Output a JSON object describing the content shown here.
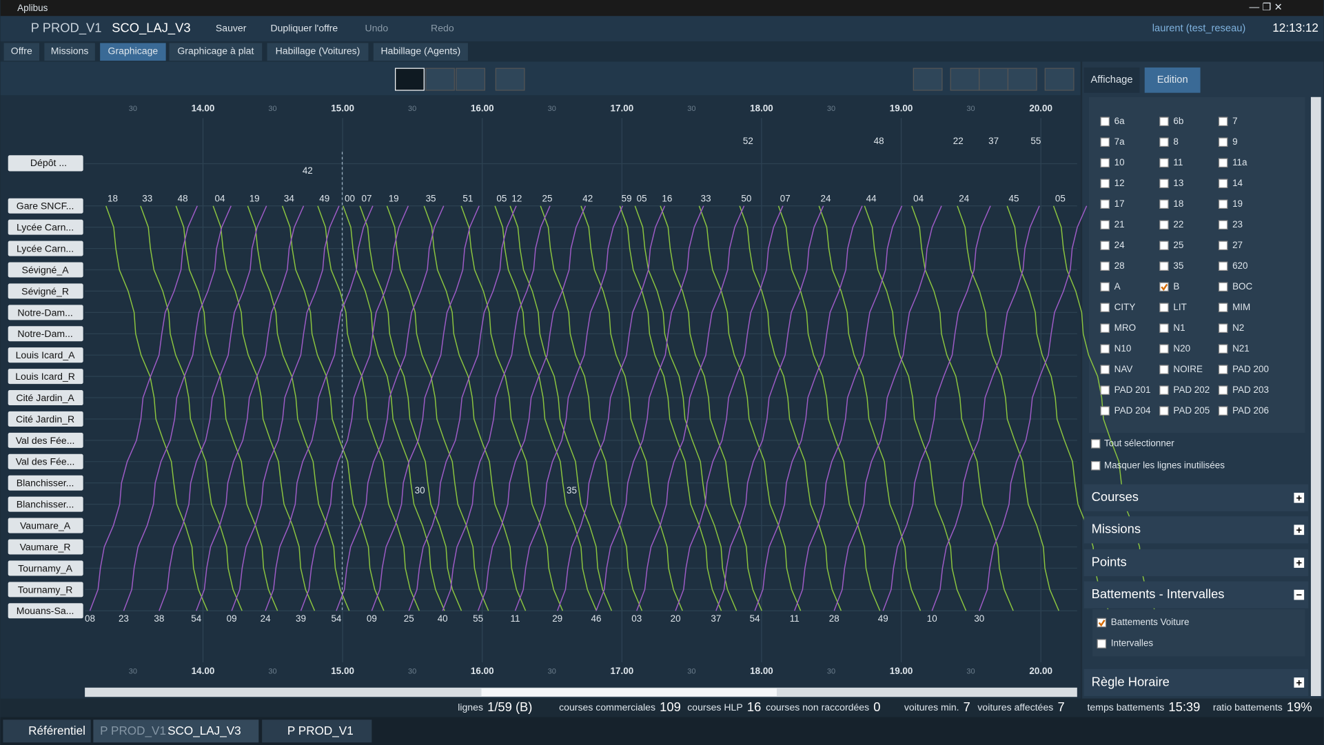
{
  "window_title": "Aplibus",
  "toolbar": {
    "project": "P PROD_V1",
    "offer": "SCO_LAJ_V3",
    "menus": [
      "Sauver",
      "Dupliquer l'offre",
      "Undo",
      "Redo"
    ],
    "user": "laurent (test_reseau)",
    "clock": "12:13:12"
  },
  "tabs": [
    "Offre",
    "Missions",
    "Graphicage",
    "Graphicage à plat",
    "Habillage (Voitures)",
    "Habillage (Agents)"
  ],
  "side_tabs": [
    "Affichage",
    "Edition"
  ],
  "graph": {
    "hours": [
      "14.00",
      "15.00",
      "16.00",
      "17.00",
      "18.00",
      "19.00",
      "20.00"
    ],
    "half_hour": "30",
    "depot": "Dépôt ...",
    "stops": [
      "Gare SNCF...",
      "Lycée Carn...",
      "Lycée Carn...",
      "Sévigné_A",
      "Sévigné_R",
      "Notre-Dam...",
      "Notre-Dam...",
      "Louis Icard_A",
      "Louis Icard_R",
      "Cité Jardin_A",
      "Cité Jardin_R",
      "Val des Fée...",
      "Val des Fée...",
      "Blanchisser...",
      "Blanchisser...",
      "Vaumare_A",
      "Vaumare_R",
      "Tournamy_A",
      "Tournamy_R",
      "Mouans-Sa..."
    ],
    "top_labels": [
      "18",
      "33",
      "48",
      "04",
      "19",
      "34",
      "49",
      "00",
      "07",
      "19",
      "35",
      "51",
      "05",
      "12",
      "25",
      "42",
      "59",
      "05",
      "16",
      "33",
      "50",
      "07",
      "24",
      "44",
      "04",
      "24",
      "45",
      "05"
    ],
    "bottom_labels": [
      "08",
      "23",
      "38",
      "54",
      "09",
      "24",
      "39",
      "54",
      "09",
      "25",
      "40",
      "55",
      "11",
      "29",
      "46",
      "03",
      "20",
      "37",
      "54",
      "11",
      "28",
      "49",
      "10",
      "30"
    ],
    "annotations": [
      "42",
      "52",
      "48",
      "22",
      "37",
      "55",
      "30",
      "35"
    ]
  },
  "line_filter": [
    {
      "label": "6a",
      "checked": false
    },
    {
      "label": "6b",
      "checked": false
    },
    {
      "label": "7",
      "checked": false
    },
    {
      "label": "7a",
      "checked": false
    },
    {
      "label": "8",
      "checked": false
    },
    {
      "label": "9",
      "checked": false
    },
    {
      "label": "10",
      "checked": false
    },
    {
      "label": "11",
      "checked": false
    },
    {
      "label": "11a",
      "checked": false
    },
    {
      "label": "12",
      "checked": false
    },
    {
      "label": "13",
      "checked": false
    },
    {
      "label": "14",
      "checked": false
    },
    {
      "label": "17",
      "checked": false
    },
    {
      "label": "18",
      "checked": false
    },
    {
      "label": "19",
      "checked": false
    },
    {
      "label": "21",
      "checked": false
    },
    {
      "label": "22",
      "checked": false
    },
    {
      "label": "23",
      "checked": false
    },
    {
      "label": "24",
      "checked": false
    },
    {
      "label": "25",
      "checked": false
    },
    {
      "label": "27",
      "checked": false
    },
    {
      "label": "28",
      "checked": false
    },
    {
      "label": "35",
      "checked": false
    },
    {
      "label": "620",
      "checked": false
    },
    {
      "label": "A",
      "checked": false
    },
    {
      "label": "B",
      "checked": true
    },
    {
      "label": "BOC",
      "checked": false
    },
    {
      "label": "CITY",
      "checked": false
    },
    {
      "label": "LIT",
      "checked": false
    },
    {
      "label": "MIM",
      "checked": false
    },
    {
      "label": "MRO",
      "checked": false
    },
    {
      "label": "N1",
      "checked": false
    },
    {
      "label": "N2",
      "checked": false
    },
    {
      "label": "N10",
      "checked": false
    },
    {
      "label": "N20",
      "checked": false
    },
    {
      "label": "N21",
      "checked": false
    },
    {
      "label": "NAV",
      "checked": false
    },
    {
      "label": "NOIRE",
      "checked": false
    },
    {
      "label": "PAD 200",
      "checked": false
    },
    {
      "label": "PAD 201",
      "checked": false
    },
    {
      "label": "PAD 202",
      "checked": false
    },
    {
      "label": "PAD 203",
      "checked": false
    },
    {
      "label": "PAD 204",
      "checked": false
    },
    {
      "label": "PAD 205",
      "checked": false
    },
    {
      "label": "PAD 206",
      "checked": false
    }
  ],
  "options": [
    {
      "label": "Tout sélectionner",
      "checked": false
    },
    {
      "label": "Masquer les lignes inutilisées",
      "checked": false
    }
  ],
  "sections": [
    "Courses",
    "Missions",
    "Points",
    "Battements - Intervalles",
    "Règle Horaire"
  ],
  "battements": [
    {
      "label": "Battements Voiture",
      "checked": true
    },
    {
      "label": "Intervalles",
      "checked": false
    }
  ],
  "status": [
    {
      "label": "lignes",
      "value": "1/59 (B)"
    },
    {
      "label": "courses commerciales",
      "value": 109
    },
    {
      "label": "courses HLP",
      "value": 16
    },
    {
      "label": "courses non raccordées",
      "value": 0
    },
    {
      "label": "voitures min.",
      "value": 7
    },
    {
      "label": "voitures affectées",
      "value": 7
    },
    {
      "label": "temps battements",
      "value": "15:39"
    },
    {
      "label": "ratio battements",
      "value": "19%"
    }
  ],
  "taskbar": [
    "Référentiel",
    "P PROD_V1",
    "SCO_LAJ_V3",
    "P PROD_V1"
  ]
}
